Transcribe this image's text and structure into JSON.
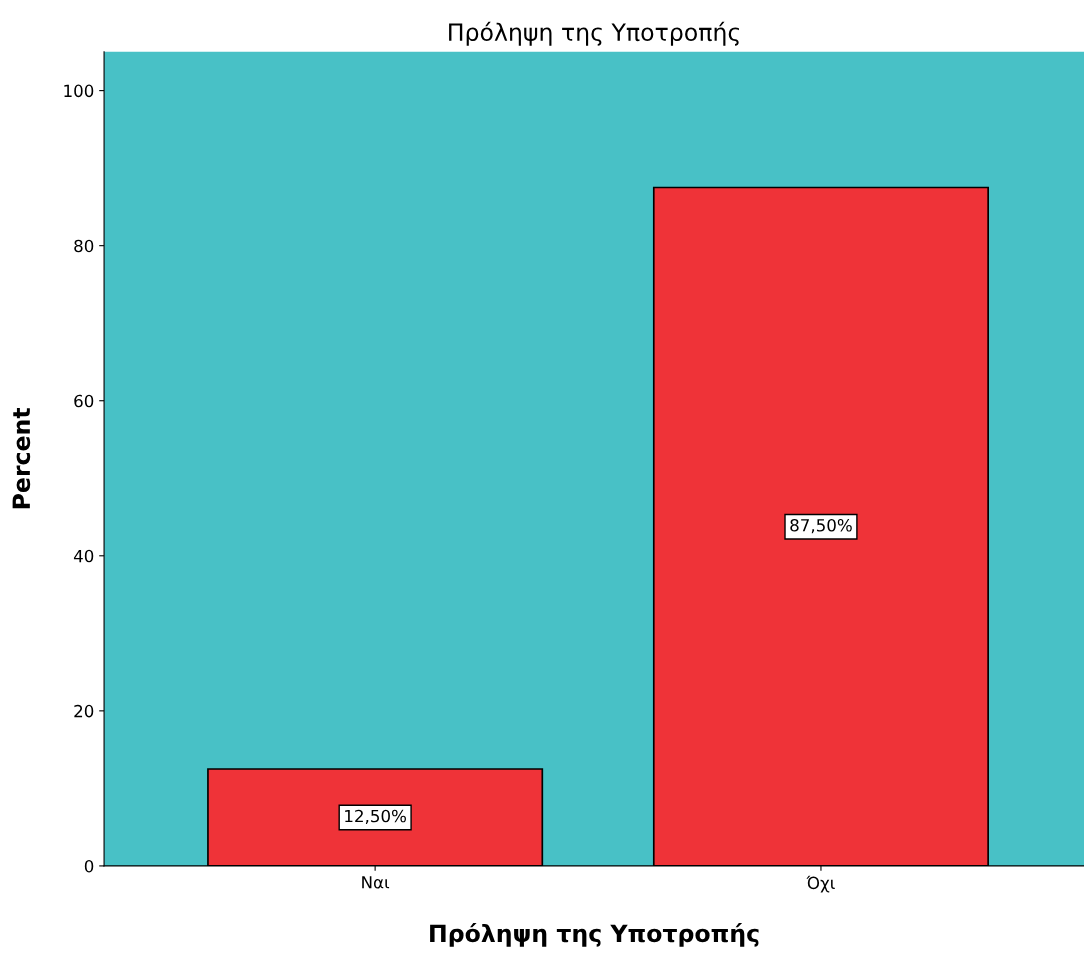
{
  "chart_data": {
    "type": "bar",
    "title": "Πρόληψη της Υποτροπής",
    "xlabel": "Πρόληψη της Υποτροπής",
    "ylabel": "Percent",
    "categories": [
      "Ναι",
      "Όχι"
    ],
    "values": [
      12.5,
      87.5
    ],
    "value_labels": [
      "12,50%",
      "87,50%"
    ],
    "color": "#ef3338",
    "ylim": [
      0,
      105
    ],
    "yticks": [
      0,
      20,
      40,
      60,
      80,
      100
    ],
    "grid": false,
    "legend": false
  }
}
